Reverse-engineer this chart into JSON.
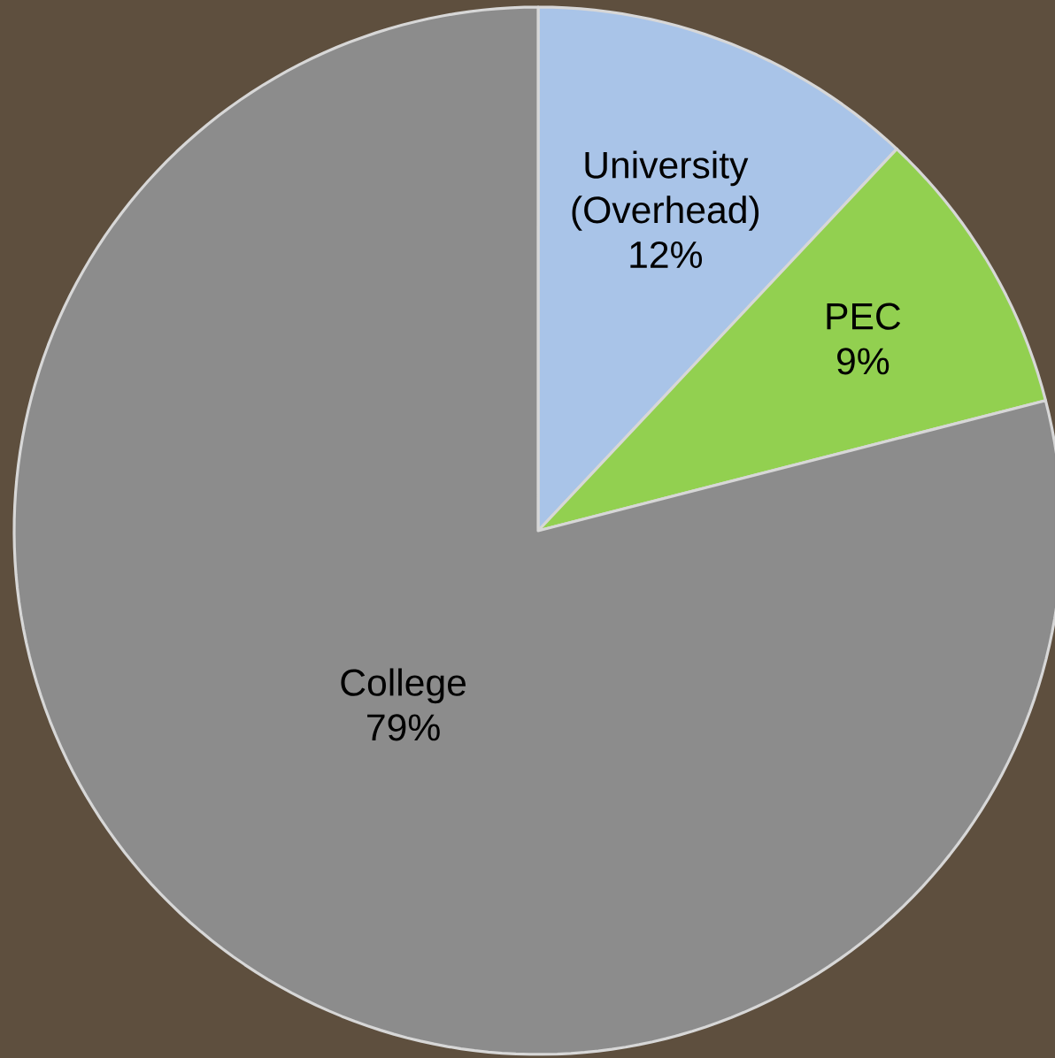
{
  "chart_data": {
    "type": "pie",
    "categories": [
      "University (Overhead)",
      "PEC",
      "College"
    ],
    "values": [
      12,
      9,
      79
    ],
    "colors": [
      "#a9c4e8",
      "#92d050",
      "#8c8c8c"
    ],
    "value_labels": [
      "12%",
      "9%",
      "79%"
    ]
  }
}
